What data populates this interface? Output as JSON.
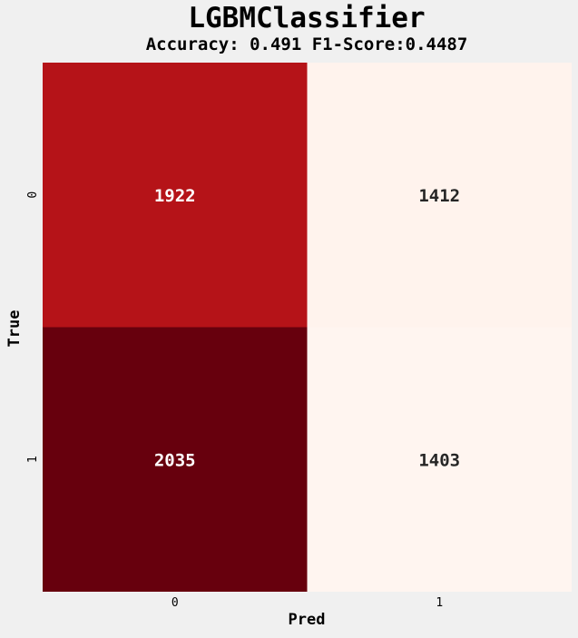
{
  "chart_data": {
    "type": "heatmap",
    "title": "LGBMClassifier",
    "subtitle": "Accuracy: 0.491 F1-Score:0.4487",
    "xlabel": "Pred",
    "ylabel": "True",
    "x_categories": [
      "0",
      "1"
    ],
    "y_categories": [
      "0",
      "1"
    ],
    "values": [
      [
        1922,
        1412
      ],
      [
        2035,
        1403
      ]
    ],
    "colormap": "Reds",
    "color_range": [
      1403,
      2035
    ],
    "colorbar": false,
    "grid": false
  },
  "colors": {
    "background": "#f0f0f0",
    "cmap_low": "#fff5f0",
    "cmap_mid": "#fb6a4a",
    "cmap_high": "#67000d",
    "text_dark": "#262626",
    "text_light": "#ffffff"
  }
}
